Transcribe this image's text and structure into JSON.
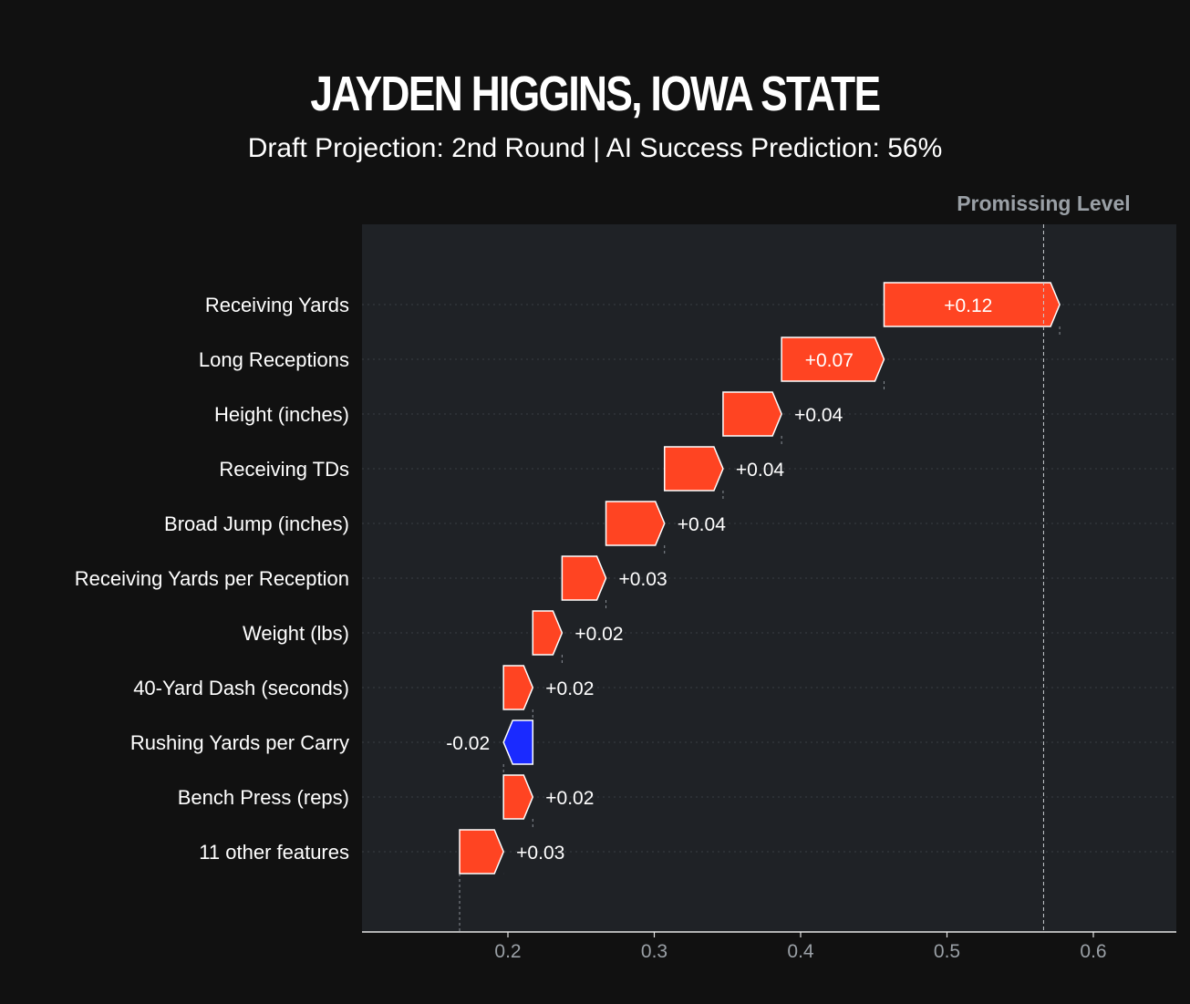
{
  "header": {
    "title": "JAYDEN HIGGINS, IOWA STATE",
    "subtitle": "Draft Projection: 2nd Round | AI Success Prediction: 56%"
  },
  "colors": {
    "background": "#111111",
    "plot_background": "#1f2226",
    "positive": "#ff4422",
    "negative": "#1a2aff",
    "axis_text": "#9aa0a6"
  },
  "chart_data": {
    "type": "waterfall",
    "base_value": 0.167,
    "categories": [
      "Receiving Yards",
      "Long Receptions",
      "Height (inches)",
      "Receiving TDs",
      "Broad Jump (inches)",
      "Receiving Yards per Reception",
      "Weight (lbs)",
      "40-Yard Dash (seconds)",
      "Rushing Yards per Carry",
      "Bench Press (reps)",
      "11 other features"
    ],
    "values": [
      0.12,
      0.07,
      0.04,
      0.04,
      0.04,
      0.03,
      0.02,
      0.02,
      -0.02,
      0.02,
      0.03
    ],
    "value_labels": [
      "+0.12",
      "+0.07",
      "+0.04",
      "+0.04",
      "+0.04",
      "+0.03",
      "+0.02",
      "+0.02",
      "-0.02",
      "+0.02",
      "+0.03"
    ],
    "x_ticks": [
      0.2,
      0.3,
      0.4,
      0.5,
      0.6
    ],
    "x_tick_labels": [
      "0.2",
      "0.3",
      "0.4",
      "0.5",
      "0.6"
    ],
    "xlim": [
      0.1,
      0.656
    ],
    "reference_line": {
      "label": "Promissing Level",
      "value": 0.566
    },
    "grid": "dotted row lines"
  }
}
